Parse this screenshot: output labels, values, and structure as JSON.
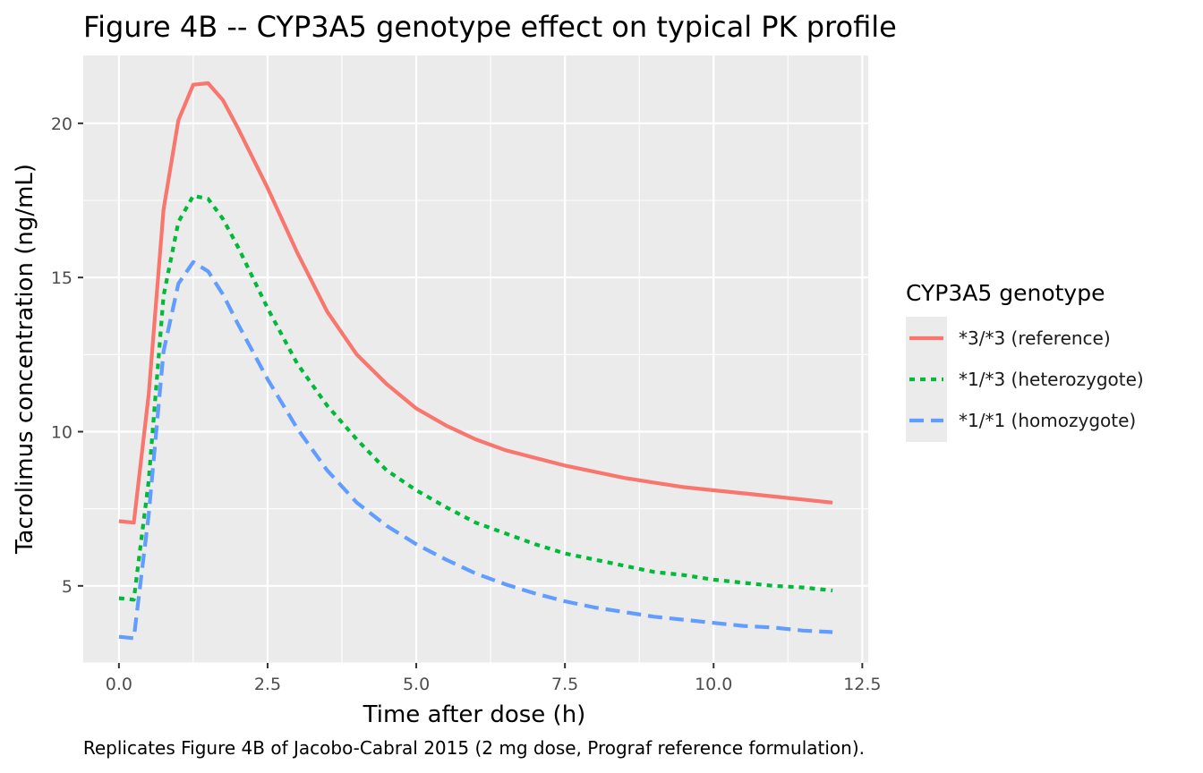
{
  "chart_data": {
    "type": "line",
    "title": "Figure 4B -- CYP3A5 genotype effect on typical PK profile",
    "xlabel": "Time after dose (h)",
    "ylabel": "Tacrolimus concentration (ng/mL)",
    "caption": "Replicates Figure 4B of Jacobo-Cabral 2015 (2 mg dose, Prograf reference formulation).",
    "xlim": [
      -0.6,
      12.6
    ],
    "ylim": [
      2.5,
      22.2
    ],
    "x_ticks": [
      0,
      2.5,
      5,
      7.5,
      10,
      12.5
    ],
    "x_tick_labels": [
      "0.0",
      "2.5",
      "5.0",
      "7.5",
      "10.0",
      "12.5"
    ],
    "y_ticks": [
      5,
      10,
      15,
      20
    ],
    "y_tick_labels": [
      "5",
      "10",
      "15",
      "20"
    ],
    "grid": true,
    "panel_background": "#ebebeb",
    "legend": {
      "title": "CYP3A5 genotype",
      "position": "right"
    },
    "series": [
      {
        "name": "*3/*3 (reference)",
        "color": "#f8766d",
        "dash": "solid",
        "x": [
          0,
          0.25,
          0.5,
          0.75,
          1.0,
          1.25,
          1.5,
          1.75,
          2.0,
          2.5,
          3.0,
          3.5,
          4.0,
          4.5,
          5.0,
          5.5,
          6.0,
          6.5,
          7.0,
          7.5,
          8.0,
          8.5,
          9.0,
          9.5,
          10.0,
          10.5,
          11.0,
          11.5,
          12.0
        ],
        "y": [
          7.1,
          7.05,
          11.2,
          17.2,
          20.1,
          21.25,
          21.3,
          20.75,
          19.85,
          17.9,
          15.8,
          13.9,
          12.5,
          11.55,
          10.75,
          10.2,
          9.75,
          9.4,
          9.15,
          8.9,
          8.7,
          8.5,
          8.35,
          8.2,
          8.1,
          8.0,
          7.9,
          7.8,
          7.7
        ]
      },
      {
        "name": "*1/*3 (heterozygote)",
        "color": "#00ba38",
        "dash": "dotted",
        "x": [
          0,
          0.25,
          0.5,
          0.75,
          1.0,
          1.25,
          1.5,
          1.75,
          2.0,
          2.5,
          3.0,
          3.5,
          4.0,
          4.5,
          5.0,
          5.5,
          6.0,
          6.5,
          7.0,
          7.5,
          8.0,
          8.5,
          9.0,
          9.5,
          10.0,
          10.5,
          11.0,
          11.5,
          12.0
        ],
        "y": [
          4.6,
          4.55,
          8.4,
          14.4,
          16.8,
          17.65,
          17.55,
          16.9,
          16.0,
          14.0,
          12.2,
          10.85,
          9.75,
          8.75,
          8.1,
          7.55,
          7.05,
          6.7,
          6.35,
          6.05,
          5.85,
          5.65,
          5.45,
          5.35,
          5.2,
          5.1,
          5.0,
          4.95,
          4.85
        ]
      },
      {
        "name": "*1/*1 (homozygote)",
        "color": "#619cff",
        "dash": "dashed",
        "x": [
          0,
          0.25,
          0.5,
          0.75,
          1.0,
          1.25,
          1.5,
          1.75,
          2.0,
          2.5,
          3.0,
          3.5,
          4.0,
          4.5,
          5.0,
          5.5,
          6.0,
          6.5,
          7.0,
          7.5,
          8.0,
          8.5,
          9.0,
          9.5,
          10.0,
          10.5,
          11.0,
          11.5,
          12.0
        ],
        "y": [
          3.35,
          3.3,
          7.3,
          12.6,
          14.8,
          15.5,
          15.2,
          14.45,
          13.5,
          11.7,
          10.1,
          8.75,
          7.7,
          6.95,
          6.35,
          5.85,
          5.4,
          5.05,
          4.75,
          4.5,
          4.3,
          4.15,
          4.0,
          3.9,
          3.8,
          3.7,
          3.65,
          3.55,
          3.5
        ]
      }
    ]
  }
}
